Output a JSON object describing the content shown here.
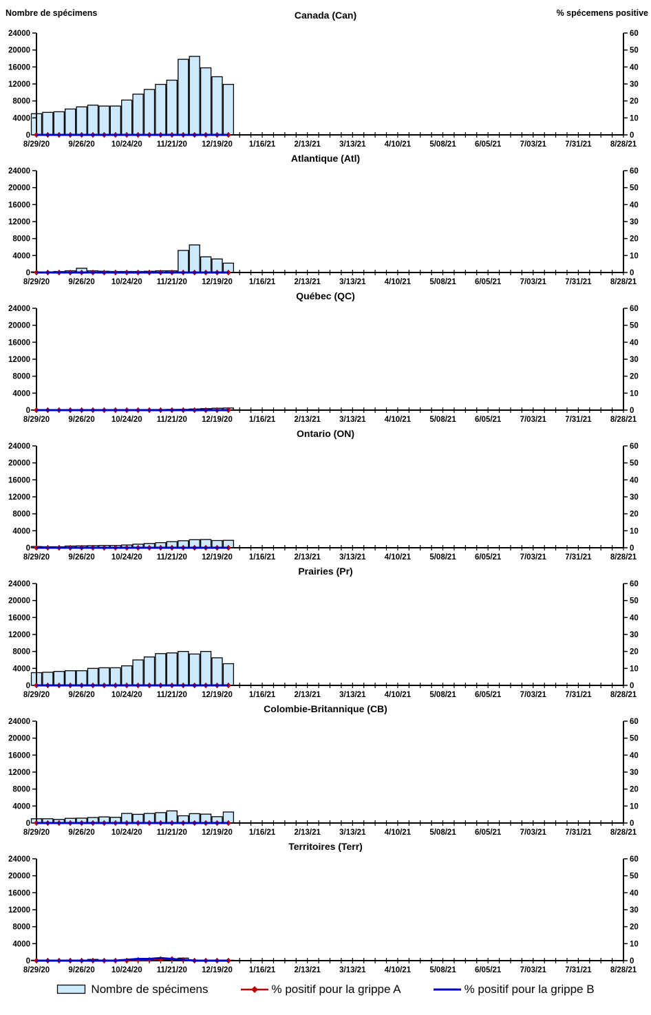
{
  "left_axis_label": "Nombre de spécimens",
  "right_axis_label": "% spécemens positive",
  "legend": {
    "specimens": "Nombre de spécimens",
    "flu_a": "% positif pour la grippe A",
    "flu_b": "% positif pour la grippe B"
  },
  "colors": {
    "bar_fill": "#CDE9FB",
    "bar_border": "#000000",
    "flu_a": "#C00000",
    "flu_b": "#0000C8",
    "axis": "#000000"
  },
  "chart_data": {
    "type": "bar",
    "note_series_types": "bars = specimen counts (left axis), lines = % positive (right axis)",
    "x_tick_labels": [
      "8/29/20",
      "9/26/20",
      "10/24/20",
      "11/21/20",
      "12/19/20",
      "1/16/21",
      "2/13/21",
      "3/13/21",
      "4/10/21",
      "5/08/21",
      "6/05/21",
      "7/03/21",
      "7/31/21",
      "8/28/21"
    ],
    "weeks_total": 53,
    "y_left_ticks": [
      0,
      4000,
      8000,
      12000,
      16000,
      20000,
      24000
    ],
    "y_left_max": 24000,
    "y_right_ticks": [
      0,
      10,
      20,
      30,
      40,
      50,
      60
    ],
    "y_right_max": 60,
    "panels": [
      {
        "id": "can",
        "title": "Canada (Can)",
        "bars": [
          5000,
          5300,
          5450,
          6100,
          6600,
          7000,
          6800,
          6800,
          8200,
          9600,
          10700,
          11900,
          12900,
          17800,
          18500,
          15800,
          13700,
          11900
        ],
        "flu_a": [
          0,
          0,
          0,
          0,
          0,
          0,
          0,
          0,
          0,
          0,
          0,
          0,
          0,
          0,
          0,
          0,
          0,
          0
        ],
        "flu_b": [
          0,
          0,
          0,
          0,
          0,
          0,
          0,
          0,
          0,
          0,
          0,
          0,
          0,
          0,
          0,
          0,
          0,
          0
        ]
      },
      {
        "id": "atl",
        "title": "Atlantique (Atl)",
        "bars": [
          150,
          150,
          250,
          400,
          1000,
          400,
          300,
          250,
          250,
          250,
          300,
          400,
          400,
          5200,
          6500,
          3700,
          3200,
          2200
        ],
        "flu_a": [
          0,
          0,
          0,
          0,
          0,
          0,
          0,
          0,
          0,
          0,
          0,
          0,
          0,
          0,
          0,
          0,
          0,
          0
        ],
        "flu_b": [
          0,
          0,
          0,
          0,
          0,
          0,
          0,
          0,
          0,
          0,
          0,
          0,
          0,
          0,
          0,
          0,
          0,
          0
        ]
      },
      {
        "id": "qc",
        "title": "Québec (QC)",
        "bars": [
          50,
          50,
          80,
          80,
          100,
          100,
          100,
          100,
          120,
          120,
          150,
          150,
          180,
          200,
          280,
          350,
          450,
          500
        ],
        "flu_a": [
          0,
          0,
          0,
          0,
          0,
          0,
          0,
          0,
          0,
          0,
          0,
          0,
          0,
          0,
          0,
          0,
          0,
          0
        ],
        "flu_b": [
          0,
          0,
          0,
          0,
          0,
          0,
          0,
          0,
          0,
          0,
          0,
          0,
          0,
          0,
          0,
          0,
          0,
          0
        ]
      },
      {
        "id": "on",
        "title": "Ontario (ON)",
        "bars": [
          300,
          250,
          250,
          400,
          450,
          500,
          550,
          550,
          650,
          850,
          1000,
          1200,
          1450,
          1650,
          1900,
          1950,
          1700,
          1750
        ],
        "flu_a": [
          0,
          0,
          0,
          0,
          0,
          0,
          0,
          0,
          0,
          0,
          0,
          0,
          0,
          0,
          0,
          0,
          0,
          0
        ],
        "flu_b": [
          0,
          0,
          0,
          0,
          0,
          0,
          0,
          0,
          0,
          0,
          0,
          0,
          0,
          0,
          0,
          0,
          0,
          0
        ]
      },
      {
        "id": "pr",
        "title": "Prairies (Pr)",
        "bars": [
          3000,
          3100,
          3300,
          3450,
          3450,
          4000,
          4150,
          4150,
          4600,
          6000,
          6700,
          7500,
          7650,
          8000,
          7400,
          8000,
          6500,
          5100
        ],
        "flu_a": [
          0,
          0,
          0,
          0,
          0,
          0,
          0,
          0,
          0,
          0,
          0,
          0,
          0,
          0,
          0,
          0,
          0,
          0
        ],
        "flu_b": [
          0,
          0,
          0,
          0,
          0,
          0,
          0,
          0,
          0,
          0,
          0,
          0,
          0,
          0,
          0,
          0,
          0,
          0
        ]
      },
      {
        "id": "cb",
        "title": "Colombie-Britannique (CB)",
        "bars": [
          1000,
          1000,
          850,
          1100,
          1150,
          1300,
          1450,
          1350,
          2250,
          2050,
          2250,
          2450,
          2850,
          1700,
          2200,
          2100,
          1500,
          2600
        ],
        "flu_a": [
          0,
          0,
          0,
          0,
          0,
          0,
          0,
          0,
          0,
          0,
          0,
          0,
          0,
          0,
          0,
          0,
          0,
          0
        ],
        "flu_b": [
          0,
          0,
          0,
          0,
          0,
          0,
          0,
          0,
          0,
          0,
          0,
          0,
          0,
          0,
          0,
          0,
          0,
          0
        ]
      },
      {
        "id": "terr",
        "title": "Territoires (Terr)",
        "bars": [
          100,
          100,
          100,
          100,
          100,
          300,
          150,
          100,
          100,
          200,
          250,
          250,
          300,
          600,
          150,
          100,
          100,
          100
        ],
        "flu_a": [
          0,
          0,
          0,
          0,
          0,
          0,
          0,
          0,
          0,
          0.5,
          0.5,
          1,
          1,
          0.5,
          0,
          0,
          0,
          0
        ],
        "flu_b": [
          0,
          0,
          0,
          0,
          0,
          0,
          0,
          0,
          0.5,
          1,
          1,
          1.5,
          1,
          0.5,
          0,
          0,
          0,
          0
        ]
      }
    ]
  }
}
